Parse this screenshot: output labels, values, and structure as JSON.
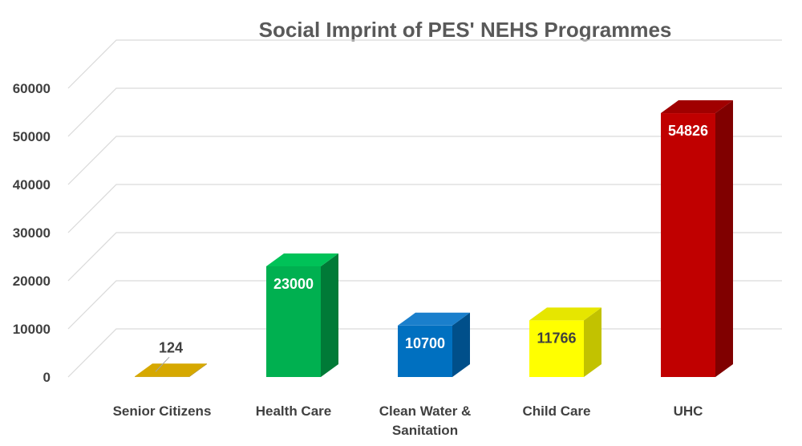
{
  "chart_data": {
    "type": "bar",
    "style": "3d",
    "title": "Social Imprint of PES' NEHS Programmes",
    "xlabel": "",
    "ylabel": "",
    "ylim": [
      0,
      60000
    ],
    "yticks": [
      0,
      10000,
      20000,
      30000,
      40000,
      50000,
      60000
    ],
    "ytick_labels": [
      "0",
      "10000",
      "20000",
      "30000",
      "40000",
      "50000",
      "60000"
    ],
    "grid": true,
    "legend": "none",
    "categories": [
      [
        "Senior Citizens"
      ],
      [
        "Health Care"
      ],
      [
        "Clean Water &",
        "Sanitation"
      ],
      [
        "Child Care"
      ],
      [
        "UHC"
      ]
    ],
    "values": [
      124,
      23000,
      10700,
      11766,
      54826
    ],
    "data_labels": [
      "124",
      "23000",
      "10700",
      "11766",
      "54826"
    ],
    "colors": [
      {
        "front": "#c89b00",
        "side": "#9a7700",
        "top": "#d6a800",
        "label": "#404040"
      },
      {
        "front": "#00b050",
        "side": "#007a37",
        "top": "#00c258",
        "label": "#ffffff"
      },
      {
        "front": "#0070c0",
        "side": "#004f8a",
        "top": "#1a7fcc",
        "label": "#ffffff"
      },
      {
        "front": "#ffff00",
        "side": "#c2c200",
        "top": "#e6e600",
        "label": "#404040"
      },
      {
        "front": "#c00000",
        "side": "#800000",
        "top": "#a00000",
        "label": "#ffffff"
      }
    ]
  }
}
